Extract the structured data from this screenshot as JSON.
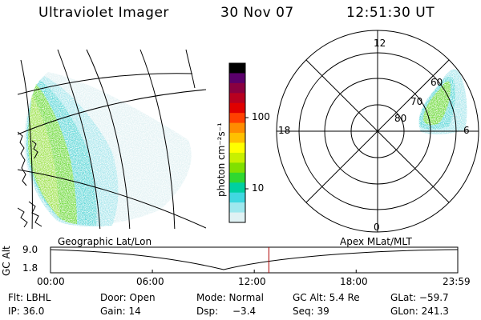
{
  "header": {
    "title": "Ultraviolet Imager",
    "date": "30 Nov 07",
    "time": "12:51:30 UT"
  },
  "colorbar": {
    "unit_label": "photon cm⁻²s⁻¹",
    "ticks": [
      {
        "value": 100,
        "label": "100"
      },
      {
        "value": 10,
        "label": "10"
      }
    ],
    "colors": [
      "#000000",
      "#5a006a",
      "#8a0040",
      "#b80020",
      "#e00000",
      "#ff4000",
      "#ff8c00",
      "#ffc000",
      "#ffff00",
      "#c8f000",
      "#80e000",
      "#30d830",
      "#00d0a0",
      "#40d8e0",
      "#9ee8ee",
      "#e0f2f4"
    ]
  },
  "polar": {
    "hour_labels": [
      {
        "hour": 12,
        "label": "12"
      },
      {
        "hour": 18,
        "label": "18"
      },
      {
        "hour": 6,
        "label": "6"
      },
      {
        "hour": 0,
        "label": "0"
      }
    ],
    "lat_labels": [
      {
        "lat": 60,
        "label": "60"
      },
      {
        "lat": 70,
        "label": "70"
      },
      {
        "lat": 80,
        "label": "80"
      }
    ]
  },
  "panel_labels": {
    "geographic": "Geographic Lat/Lon",
    "apex": "Apex MLat/MLT"
  },
  "altitude_plot": {
    "ylabel": "GC Alt",
    "y_ticks": [
      "9.0",
      "1.8"
    ],
    "x_ticks": [
      "00:00",
      "06:00",
      "12:00",
      "18:00",
      "23:59"
    ],
    "current_marker_time": "12:51:30"
  },
  "info": {
    "flt": "Flt: LBHL",
    "door": "Door: Open",
    "mode": "Mode: Normal",
    "gc_alt": "GC Alt: 5.4 Re",
    "glat": "GLat: −59.7",
    "ip": "IP: 36.0",
    "gain": "Gain: 14",
    "dsp_label": "Dsp:",
    "dsp_value": "−3.4",
    "seq": "Seq: 39",
    "glon": "GLon: 241.3"
  }
}
